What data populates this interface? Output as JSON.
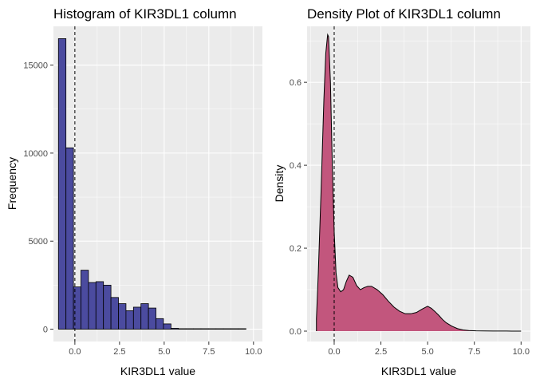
{
  "chart_data": [
    {
      "type": "bar",
      "title": "Histogram of KIR3DL1 column",
      "xlabel": "KIR3DL1 value",
      "ylabel": "Frequency",
      "xlim": [
        -1.2,
        10.5
      ],
      "ylim": [
        -700,
        17200
      ],
      "x_ticks": [
        0.0,
        2.5,
        5.0,
        7.5,
        10.0
      ],
      "x_tick_labels": [
        "0.0",
        "2.5",
        "5.0",
        "7.5",
        "10.0"
      ],
      "y_ticks": [
        0,
        5000,
        10000,
        15000
      ],
      "y_tick_labels": [
        "0",
        "5000",
        "10000",
        "15000"
      ],
      "grid": true,
      "panel_background": "#ebebeb",
      "bar_fill": "#4b4b9f",
      "bar_outline": "#000000",
      "reference_line_x": 0,
      "bin_edges": [
        -0.92,
        -0.5,
        -0.08,
        0.34,
        0.76,
        1.18,
        1.6,
        2.02,
        2.44,
        2.86,
        3.28,
        3.7,
        4.12,
        4.54,
        4.96,
        5.38,
        5.8,
        6.22,
        6.64,
        7.06,
        7.48,
        7.9,
        8.32,
        8.74,
        9.16,
        9.58
      ],
      "values": [
        16500,
        10300,
        2400,
        3350,
        2650,
        2700,
        2500,
        1800,
        1450,
        1050,
        1250,
        1450,
        1200,
        600,
        300,
        50,
        20,
        10,
        5,
        5,
        3,
        2,
        2,
        1,
        1
      ]
    },
    {
      "type": "area",
      "title": "Density Plot of KIR3DL1 column",
      "xlabel": "KIR3DL1 value",
      "ylabel": "Density",
      "xlim": [
        -1.45,
        10.5
      ],
      "ylim": [
        -0.025,
        0.735
      ],
      "x_ticks": [
        0.0,
        2.5,
        5.0,
        7.5,
        10.0
      ],
      "x_tick_labels": [
        "0.0",
        "2.5",
        "5.0",
        "7.5",
        "10.0"
      ],
      "y_ticks": [
        0.0,
        0.2,
        0.4,
        0.6
      ],
      "y_tick_labels": [
        "0.0",
        "0.2",
        "0.4",
        "0.6"
      ],
      "grid": true,
      "panel_background": "#ebebeb",
      "area_fill": "#c2567d",
      "line_color": "#000000",
      "reference_line_x": 0,
      "x": [
        -0.95,
        -0.85,
        -0.7,
        -0.55,
        -0.45,
        -0.35,
        -0.3,
        -0.2,
        -0.1,
        0.0,
        0.1,
        0.2,
        0.35,
        0.5,
        0.65,
        0.8,
        1.0,
        1.2,
        1.4,
        1.6,
        1.8,
        2.0,
        2.3,
        2.6,
        2.9,
        3.2,
        3.5,
        3.8,
        4.1,
        4.4,
        4.7,
        5.0,
        5.2,
        5.4,
        5.6,
        5.8,
        6.0,
        6.3,
        6.6,
        6.9,
        7.2,
        7.6,
        8.0,
        8.5,
        9.0,
        9.5,
        10.0
      ],
      "y": [
        0.03,
        0.14,
        0.34,
        0.56,
        0.67,
        0.715,
        0.71,
        0.6,
        0.4,
        0.24,
        0.14,
        0.105,
        0.095,
        0.1,
        0.12,
        0.135,
        0.13,
        0.11,
        0.1,
        0.105,
        0.108,
        0.108,
        0.1,
        0.088,
        0.072,
        0.058,
        0.048,
        0.042,
        0.042,
        0.045,
        0.053,
        0.06,
        0.055,
        0.047,
        0.038,
        0.028,
        0.02,
        0.012,
        0.006,
        0.003,
        0.0015,
        0.0008,
        0.0005,
        0.0003,
        0.0002,
        0.0001,
        0.0
      ]
    }
  ]
}
